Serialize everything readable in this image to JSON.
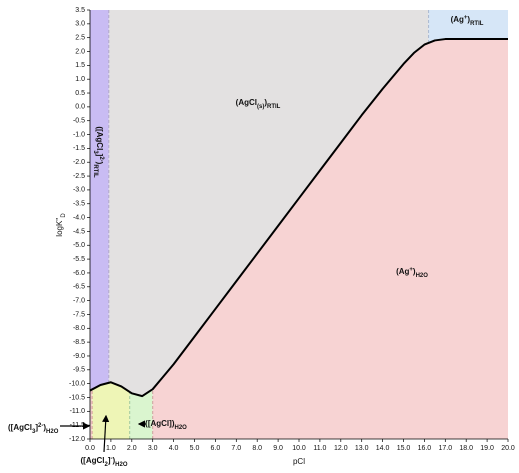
{
  "chart_data": {
    "type": "line",
    "xlabel": "pCl",
    "ylabel": [
      {
        "text": "logK''"
      },
      {
        "text": "D",
        "pos": "sub"
      }
    ],
    "x": [
      0,
      0.5,
      1,
      1.5,
      2,
      2.5,
      3,
      3.5,
      4,
      5,
      6,
      7,
      8,
      9,
      10,
      11,
      12,
      13,
      14,
      15,
      15.5,
      16,
      16.5,
      17,
      18,
      19,
      20
    ],
    "values": [
      -10.25,
      -10.05,
      -9.95,
      -10.1,
      -10.35,
      -10.45,
      -10.2,
      -9.75,
      -9.3,
      -8.3,
      -7.3,
      -6.3,
      -5.3,
      -4.3,
      -3.3,
      -2.3,
      -1.3,
      -0.3,
      0.65,
      1.55,
      1.95,
      2.25,
      2.4,
      2.45,
      2.45,
      2.45,
      2.45
    ],
    "color": "#000000",
    "xlim": [
      0,
      20
    ],
    "ylim": [
      -12,
      3.5
    ],
    "xticks": [
      {
        "value": 0,
        "label": "0.0"
      },
      {
        "value": 1,
        "label": "1.0"
      },
      {
        "value": 2,
        "label": "2.0"
      },
      {
        "value": 3,
        "label": "3.0"
      },
      {
        "value": 4,
        "label": "4.0"
      },
      {
        "value": 5,
        "label": "5.0"
      },
      {
        "value": 6,
        "label": "6.0"
      },
      {
        "value": 7,
        "label": "7.0"
      },
      {
        "value": 8,
        "label": "8.0"
      },
      {
        "value": 9,
        "label": "9.0"
      },
      {
        "value": 10,
        "label": "10.0"
      },
      {
        "value": 11,
        "label": "11.0"
      },
      {
        "value": 12,
        "label": "12.0"
      },
      {
        "value": 13,
        "label": "13.0"
      },
      {
        "value": 14,
        "label": "14.0"
      },
      {
        "value": 15,
        "label": "15.0"
      },
      {
        "value": 16,
        "label": "16.0"
      },
      {
        "value": 17,
        "label": "17.0"
      },
      {
        "value": 18,
        "label": "18.0"
      },
      {
        "value": 19,
        "label": "19.0"
      },
      {
        "value": 20,
        "label": "20.0"
      }
    ],
    "yticks": [
      3.5,
      {
        "value": 3,
        "label": "3.0"
      },
      2.5,
      {
        "value": 2,
        "label": "2.0"
      },
      1.5,
      {
        "value": 1,
        "label": "1.0"
      },
      0.5,
      {
        "value": 0,
        "label": "0.0"
      },
      -0.5,
      {
        "value": -1,
        "label": "-1.0"
      },
      -1.5,
      {
        "value": -2,
        "label": "-2.0"
      },
      -2.5,
      {
        "value": -3,
        "label": "-3.0"
      },
      -3.5,
      {
        "value": -4,
        "label": "-4.0"
      },
      -4.5,
      {
        "value": -5,
        "label": "-5.0"
      },
      -5.5,
      {
        "value": -6,
        "label": "-6.0"
      },
      -6.5,
      {
        "value": -7,
        "label": "-7.0"
      },
      -7.5,
      {
        "value": -8,
        "label": "-8.0"
      },
      -8.5,
      {
        "value": -9,
        "label": "-9.0"
      },
      -9.5,
      {
        "value": -10,
        "label": "-10.0"
      },
      -10.5,
      {
        "value": -11,
        "label": "-11.0"
      },
      -11.5,
      {
        "value": -12,
        "label": "-12.0"
      }
    ],
    "regions": [
      {
        "x": [
          0,
          0.9
        ],
        "side": "above",
        "color": "#c9bcf3",
        "edge": "#a48ee0"
      },
      {
        "x": [
          0.9,
          16.2
        ],
        "side": "above",
        "color": "#e3e1e1",
        "edge": "#b0a8c8"
      },
      {
        "x": [
          16.2,
          20
        ],
        "side": "above",
        "color": "#d6e6f7",
        "edge": "#a9b8d0"
      },
      {
        "x": [
          0,
          0.1
        ],
        "side": "below",
        "color": "#f6d2d2",
        "edge": "#e08a8a"
      },
      {
        "x": [
          0.1,
          1.9
        ],
        "side": "below",
        "color": "#eef5b6",
        "edge": "#d29a9a"
      },
      {
        "x": [
          1.9,
          3.0
        ],
        "side": "below",
        "color": "#daf5cf",
        "edge": "#a0c8a0"
      },
      {
        "x": [
          3.0,
          20
        ],
        "side": "below",
        "color": "#f7d3d3",
        "edge": "#d0a0a0"
      }
    ],
    "annotations": [
      [
        {
          "text": "([AgCl"
        },
        {
          "text": "3",
          "pos": "sub"
        },
        {
          "text": "]"
        },
        {
          "text": "2-",
          "pos": "super"
        },
        {
          "text": ")"
        },
        {
          "text": "RTIL",
          "pos": "sub"
        }
      ],
      [
        {
          "text": "(AgCl"
        },
        {
          "text": "(s)",
          "pos": "sub"
        },
        {
          "text": ")"
        },
        {
          "text": "RTIL",
          "pos": "sub"
        }
      ],
      [
        {
          "text": "(Ag"
        },
        {
          "text": "+",
          "pos": "super"
        },
        {
          "text": ")"
        },
        {
          "text": "RTIL",
          "pos": "sub"
        }
      ],
      [
        {
          "text": "(Ag"
        },
        {
          "text": "+",
          "pos": "super"
        },
        {
          "text": ")"
        },
        {
          "text": "H2O",
          "pos": "sub"
        }
      ],
      [
        {
          "text": "([AgCl"
        },
        {
          "text": "3",
          "pos": "sub"
        },
        {
          "text": "]"
        },
        {
          "text": "2-",
          "pos": "super"
        },
        {
          "text": ")"
        },
        {
          "text": "H2O",
          "pos": "sub"
        }
      ],
      [
        {
          "text": "([AgCl"
        },
        {
          "text": "2",
          "pos": "sub"
        },
        {
          "text": "]"
        },
        {
          "text": "-",
          "pos": "super"
        },
        {
          "text": ")"
        },
        {
          "text": "H2O",
          "pos": "sub"
        }
      ],
      [
        {
          "text": "([AgCl])"
        },
        {
          "text": "H2O",
          "pos": "sub"
        }
      ]
    ]
  }
}
